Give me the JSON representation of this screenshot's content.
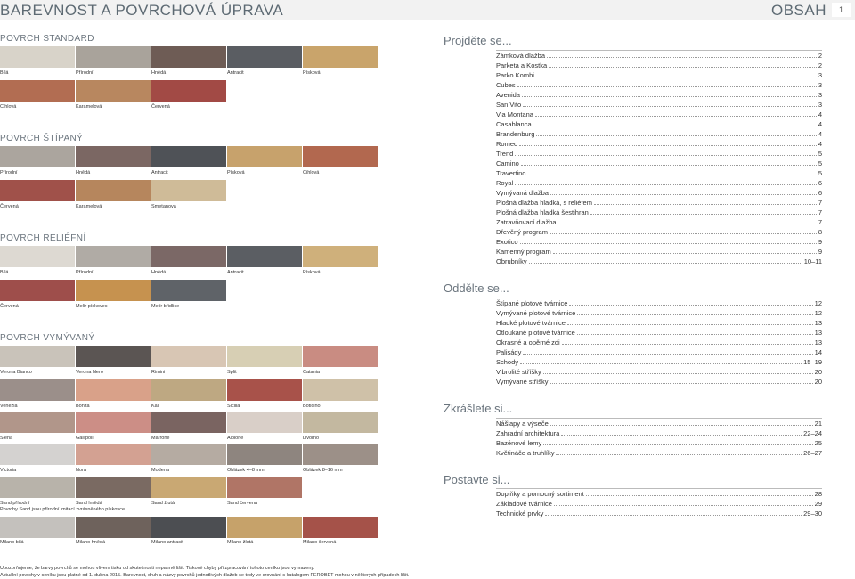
{
  "header": {
    "title": "BAREVNOST A  POVRCHOVÁ ÚPRAVA",
    "obsah": "OBSAH",
    "page": "1"
  },
  "sections": [
    {
      "heading": "POVRCH STANDARD",
      "rows": [
        [
          {
            "label": "Bílá",
            "color": "#d8d3c9"
          },
          {
            "label": "Přírodní",
            "color": "#a9a39b"
          },
          {
            "label": "Hnědá",
            "color": "#6e5c55"
          },
          {
            "label": "Antracit",
            "color": "#5a5d62"
          },
          {
            "label": "Písková",
            "color": "#c9a46b"
          }
        ],
        [
          {
            "label": "Cihlová",
            "color": "#b26d52"
          },
          {
            "label": "Karamelová",
            "color": "#b8875f"
          },
          {
            "label": "Červená",
            "color": "#a24a45"
          }
        ]
      ]
    },
    {
      "heading": "POVRCH ŠTÍPANÝ",
      "rows": [
        [
          {
            "label": "Přírodní",
            "color": "#aba59e"
          },
          {
            "label": "Hnědá",
            "color": "#7b6763"
          },
          {
            "label": "Antracit",
            "color": "#4f5257"
          },
          {
            "label": "Písková",
            "color": "#c7a26c"
          },
          {
            "label": "Cihlová",
            "color": "#b2684f"
          }
        ],
        [
          {
            "label": "Červená",
            "color": "#a0514a"
          },
          {
            "label": "Karamelová",
            "color": "#b6865d"
          },
          {
            "label": "Smetanová",
            "color": "#cfbb98"
          }
        ]
      ]
    },
    {
      "heading": "POVRCH RELIÉFNÍ",
      "rows": [
        [
          {
            "label": "Bílá",
            "color": "#ddd9d2"
          },
          {
            "label": "Přírodní",
            "color": "#b0aba5"
          },
          {
            "label": "Hnědá",
            "color": "#7b6866"
          },
          {
            "label": "Antracit",
            "color": "#5b5e63"
          },
          {
            "label": "Písková",
            "color": "#cfb07b"
          }
        ],
        [
          {
            "label": "Červená",
            "color": "#9e4e4b"
          },
          {
            "label": "Melír pískovec",
            "color": "#c6924f"
          },
          {
            "label": "Melír břidlice",
            "color": "#5f6368"
          }
        ]
      ]
    },
    {
      "heading": "POVRCH VYMÝVANÝ",
      "rows": [
        [
          {
            "label": "Verona Bianco",
            "color": "#c9c3ba"
          },
          {
            "label": "Verona Nero",
            "color": "#5b5553"
          },
          {
            "label": "Rimini",
            "color": "#d8c6b4"
          },
          {
            "label": "Split",
            "color": "#d7cfb4"
          },
          {
            "label": "Catania",
            "color": "#c98c82"
          }
        ],
        [
          {
            "label": "Venezia",
            "color": "#9b8f8a"
          },
          {
            "label": "Bonita",
            "color": "#d9a189"
          },
          {
            "label": "Kali",
            "color": "#bea882"
          },
          {
            "label": "Sicilia",
            "color": "#a8524a"
          },
          {
            "label": "Boticino",
            "color": "#cfc1a8"
          }
        ],
        [
          {
            "label": "Siena",
            "color": "#b1968a"
          },
          {
            "label": "Gallipoli",
            "color": "#cc8e86"
          },
          {
            "label": "Marrone",
            "color": "#7a6461"
          },
          {
            "label": "Albione",
            "color": "#d9cfc8"
          },
          {
            "label": "Livorno",
            "color": "#c3b8a0"
          }
        ],
        [
          {
            "label": "Victoria",
            "color": "#d4d2d0"
          },
          {
            "label": "Nora",
            "color": "#d3a192"
          },
          {
            "label": "Modena",
            "color": "#b5aba2"
          },
          {
            "label": "Oblázek 4–8 mm",
            "color": "#8e857f"
          },
          {
            "label": "Oblázek 8–16 mm",
            "color": "#9c9088"
          }
        ],
        [
          {
            "label": "Sand přírodní",
            "color": "#b8b3aa"
          },
          {
            "label": "Sand hnědá",
            "color": "#7a6a62"
          },
          {
            "label": "Sand žlutá",
            "color": "#c9a873"
          },
          {
            "label": "Sand červená",
            "color": "#b07566"
          }
        ]
      ]
    }
  ],
  "sand_note": "Povrchy Sand jsou přírodní imitací zvrásněného pískovce.",
  "milano": [
    {
      "label": "Milano bílá",
      "color": "#c4c1bd"
    },
    {
      "label": "Milano hnědá",
      "color": "#6e625c"
    },
    {
      "label": "Milano antracit",
      "color": "#4c4e52"
    },
    {
      "label": "Milano žlutá",
      "color": "#c6a26a"
    },
    {
      "label": "Milano červená",
      "color": "#a55249"
    }
  ],
  "disclaimer": [
    "Upozorňujeme, že barvy povrchů se mohou vlivem tisku od skutečnosti nepatrně lišit. Tiskové chyby při zpracování tohoto ceníku jsou vyhrazeny.",
    "Aktuální povrchy v ceníku jsou platné od 1. dubna 2015. Barevnost, druh a názvy povrchů jednotlivých dlažeb se tedy ve srovnání s katalogem FEROBET mohou v některých případech lišit."
  ],
  "toc": [
    {
      "heading": "Projděte se...",
      "items": [
        {
          "t": "Zámková dlažba",
          "p": "2"
        },
        {
          "t": "Parketa a Kostka",
          "p": "2"
        },
        {
          "t": "Parko Kombi",
          "p": "3"
        },
        {
          "t": "Cubes",
          "p": "3"
        },
        {
          "t": "Avenida",
          "p": "3"
        },
        {
          "t": "San Vito",
          "p": "3"
        },
        {
          "t": "Via Montana",
          "p": "4"
        },
        {
          "t": "Casablanca",
          "p": "4"
        },
        {
          "t": "Brandenburg",
          "p": "4"
        },
        {
          "t": "Romeo",
          "p": "4"
        },
        {
          "t": "Trend",
          "p": "5"
        },
        {
          "t": "Camino",
          "p": "5"
        },
        {
          "t": "Travertino",
          "p": "5"
        },
        {
          "t": "Royal",
          "p": "6"
        },
        {
          "t": "Vymývaná dlažba",
          "p": "6"
        },
        {
          "t": "Plošná dlažba hladká, s reliéfem",
          "p": "7"
        },
        {
          "t": "Plošná dlažba hladká šestihran",
          "p": "7"
        },
        {
          "t": "Zatravňovací dlažba",
          "p": "7"
        },
        {
          "t": "Dřevěný program",
          "p": "8"
        },
        {
          "t": "Exotico",
          "p": "9"
        },
        {
          "t": "Kamenný program",
          "p": "9"
        },
        {
          "t": "Obrubníky",
          "p": "10–11"
        }
      ]
    },
    {
      "heading": "Oddělte se...",
      "items": [
        {
          "t": "Štípané plotové tvárnice",
          "p": "12"
        },
        {
          "t": "Vymývané plotové tvárnice",
          "p": "12"
        },
        {
          "t": "Hladké plotové tvárnice",
          "p": "13"
        },
        {
          "t": "Otloukané plotové tvárnice",
          "p": "13"
        },
        {
          "t": "Okrasné a opěrné zdi",
          "p": "13"
        },
        {
          "t": "Palisády",
          "p": "14"
        },
        {
          "t": "Schody",
          "p": "15–19"
        },
        {
          "t": "Vibrolité stříšky",
          "p": "20"
        },
        {
          "t": "Vymývané stříšky",
          "p": "20"
        }
      ]
    },
    {
      "heading": "Zkrášlete si...",
      "items": [
        {
          "t": "Nášlapy a výseče",
          "p": "21"
        },
        {
          "t": "Zahradní architektura",
          "p": "22–24"
        },
        {
          "t": "Bazénové lemy",
          "p": "25"
        },
        {
          "t": "Květináče a truhlíky",
          "p": "26–27"
        }
      ]
    },
    {
      "heading": "Postavte si...",
      "items": [
        {
          "t": "Doplňky a pomocný sortiment",
          "p": "28"
        },
        {
          "t": "Základové tvárnice",
          "p": "29"
        },
        {
          "t": "Technické prvky",
          "p": "29–30"
        }
      ]
    }
  ]
}
